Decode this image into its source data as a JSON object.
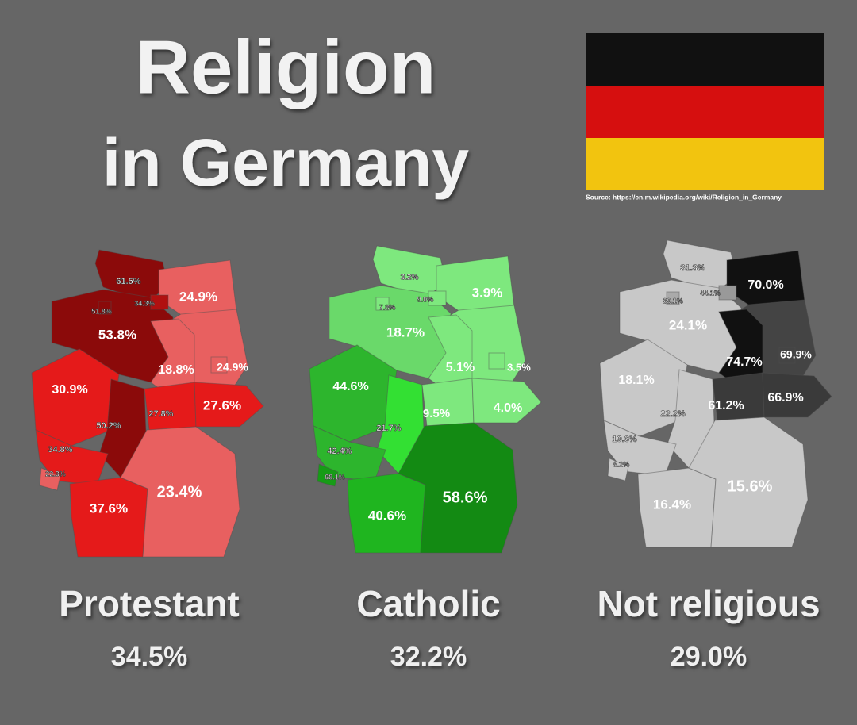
{
  "title": [
    "Religion",
    "in Germany"
  ],
  "source": "Source: https://en.m.wikipedia.org/wiki/Religion_in_Germany",
  "maps": [
    {
      "name": "Protestant",
      "total": "34.5%",
      "labels": [
        "61.5%",
        "34.3%",
        "51.8%",
        "24.9%",
        "53.8%",
        "18.8%",
        "24.9%",
        "30.9%",
        "27.8%",
        "27.6%",
        "50.2%",
        "34.8%",
        "22.3%",
        "23.4%",
        "37.6%"
      ],
      "state_colors": [
        "#8b0a0a",
        "#e86060",
        "#8b0a0a",
        "#e86060",
        "#e86060",
        "#e51a1a",
        "#8b0a0a",
        "#e51a1a",
        "#e51a1a",
        "#e51a1a",
        "#e86060",
        "#e51a1a",
        "#e86060",
        "#b01010",
        "#8b0a0a",
        "#e86060"
      ]
    },
    {
      "name": "Catholic",
      "total": "32.2%",
      "labels": [
        "3.2%",
        "9.0%",
        "7.8%",
        "3.9%",
        "18.7%",
        "5.1%",
        "3.5%",
        "44.6%",
        "9.5%",
        "4.0%",
        "21.7%",
        "42.4%",
        "68.1%",
        "58.6%",
        "40.6%"
      ],
      "state_colors": [
        "#7ee87e",
        "#7ee87e",
        "#6ad96a",
        "#7ee87e",
        "#7ee87e",
        "#2db52d",
        "#33e033",
        "#7ee87e",
        "#7ee87e",
        "#2db52d",
        "#169c16",
        "#1fb51f",
        "#138a13",
        "#7ee87e",
        "#7ee87e",
        "#7ee87e"
      ]
    },
    {
      "name": "Not religious",
      "total": "29.0%",
      "labels": [
        "31.3%",
        "44.1%",
        "39.1%",
        "70.0%",
        "24.1%",
        "74.7%",
        "69.9%",
        "18.1%",
        "66.9%",
        "61.2%",
        "22.2%",
        "19.6%",
        "8.2%",
        "15.6%",
        "16.4%"
      ],
      "state_colors": [
        "#c8c8c8",
        "#111111",
        "#c8c8c8",
        "#444444",
        "#111111",
        "#c8c8c8",
        "#c8c8c8",
        "#3a3a3a",
        "#3a3a3a",
        "#c8c8c8",
        "#c8c8c8",
        "#c8c8c8",
        "#c8c8c8",
        "#999999",
        "#aaaaaa",
        "#444444"
      ]
    }
  ]
}
